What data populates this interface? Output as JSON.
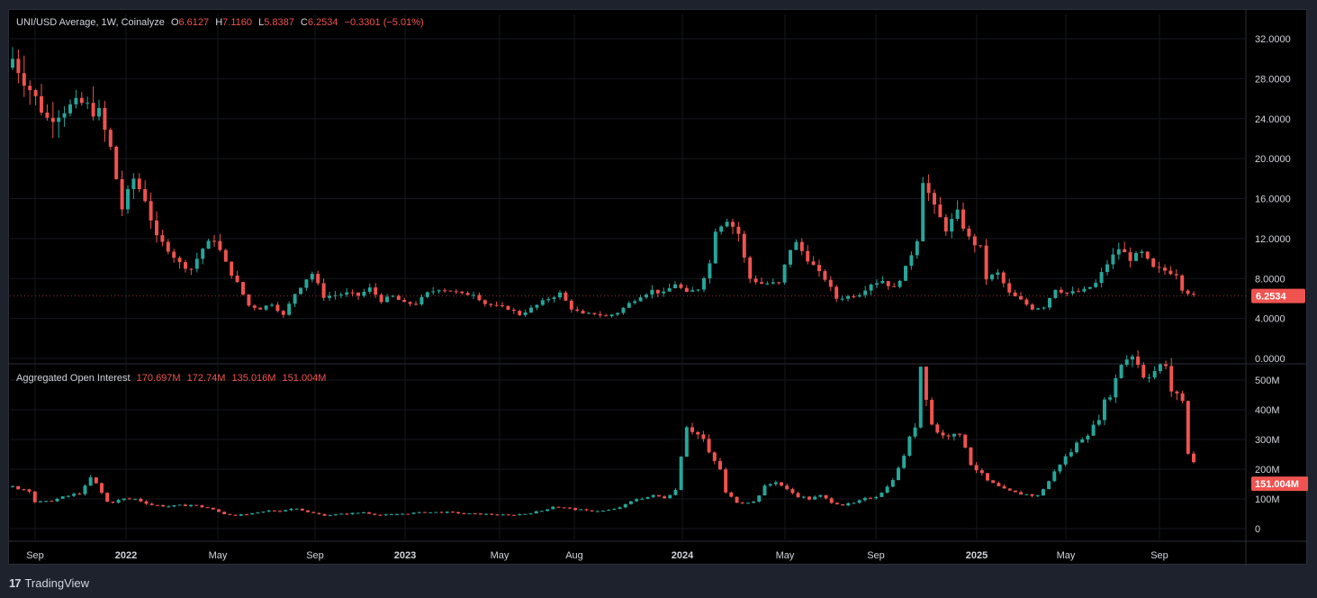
{
  "price_legend": {
    "symbol": "UNI/USD Average, 1W, Coinalyze",
    "open_label": "O",
    "open": "6.6127",
    "high_label": "H",
    "high": "7.1160",
    "low_label": "L",
    "low": "5.8387",
    "close_label": "C",
    "close": "6.2534",
    "change": "−0.3301 (−5.01%)"
  },
  "oi_legend": {
    "title": "Aggregated Open Interest",
    "v1": "170.697M",
    "v2": "172.74M",
    "v3": "135.016M",
    "v4": "151.004M"
  },
  "footer": {
    "brand": "TradingView",
    "logo_text": "17"
  },
  "colors": {
    "up": "#26a69a",
    "down": "#ef5350",
    "bg": "#000000",
    "grid": "#1c1f26",
    "text": "#d1d4dc"
  },
  "chart_data": [
    {
      "type": "candlestick",
      "title": "UNI/USD Average, 1W, Coinalyze",
      "y_ticks": [
        "32.0000",
        "28.0000",
        "24.0000",
        "20.0000",
        "16.0000",
        "12.0000",
        "8.0000",
        "4.0000",
        "0.0000"
      ],
      "ylim": [
        0,
        34.5
      ],
      "last_value_label": "6.2534",
      "x_ticks": [
        {
          "label": "Sep",
          "bold": false
        },
        {
          "label": "2022",
          "bold": true
        },
        {
          "label": "May",
          "bold": false
        },
        {
          "label": "Sep",
          "bold": false
        },
        {
          "label": "2023",
          "bold": true
        },
        {
          "label": "May",
          "bold": false
        },
        {
          "label": "Aug",
          "bold": false
        },
        {
          "label": "2024",
          "bold": true
        },
        {
          "label": "May",
          "bold": false
        },
        {
          "label": "Sep",
          "bold": false
        },
        {
          "label": "2025",
          "bold": true
        },
        {
          "label": "May",
          "bold": false
        },
        {
          "label": "Sep",
          "bold": false
        }
      ],
      "close_path": [
        [
          0,
          30
        ],
        [
          3,
          27
        ],
        [
          6,
          24
        ],
        [
          9,
          25
        ],
        [
          12,
          25.5
        ],
        [
          15,
          24.5
        ],
        [
          17,
          21
        ],
        [
          19,
          15
        ],
        [
          21,
          18
        ],
        [
          23,
          16
        ],
        [
          25,
          12
        ],
        [
          27,
          11
        ],
        [
          29,
          9.5
        ],
        [
          31,
          9
        ],
        [
          33,
          11
        ],
        [
          35,
          12
        ],
        [
          37,
          9.5
        ],
        [
          39,
          7.5
        ],
        [
          41,
          5.3
        ],
        [
          43,
          5
        ],
        [
          45,
          5.5
        ],
        [
          47,
          4.3
        ],
        [
          49,
          6.5
        ],
        [
          51,
          8
        ],
        [
          52,
          8.5
        ],
        [
          54,
          6.2
        ],
        [
          58,
          6.5
        ],
        [
          60,
          6.3
        ],
        [
          62,
          7
        ],
        [
          64,
          5.8
        ],
        [
          66,
          6.2
        ],
        [
          68,
          5.5
        ],
        [
          70,
          5.5
        ],
        [
          72,
          6.5
        ],
        [
          74,
          7
        ],
        [
          76,
          6.8
        ],
        [
          78,
          6.4
        ],
        [
          80,
          6.5
        ],
        [
          82,
          5.5
        ],
        [
          84,
          5.2
        ],
        [
          86,
          5
        ],
        [
          88,
          4.4
        ],
        [
          90,
          5
        ],
        [
          93,
          6
        ],
        [
          95,
          6.5
        ],
        [
          97,
          5
        ],
        [
          99,
          4.4
        ],
        [
          101,
          4.5
        ],
        [
          103,
          4.2
        ],
        [
          105,
          4.6
        ],
        [
          107,
          5.5
        ],
        [
          109,
          6.3
        ],
        [
          111,
          6.8
        ],
        [
          113,
          6.5
        ],
        [
          115,
          7.5
        ],
        [
          117,
          6.5
        ],
        [
          119,
          7
        ],
        [
          121,
          9.5
        ],
        [
          122,
          13
        ],
        [
          124,
          14
        ],
        [
          126,
          12.5
        ],
        [
          127,
          10
        ],
        [
          128,
          8
        ],
        [
          130,
          7.5
        ],
        [
          133,
          7.5
        ],
        [
          135,
          11
        ],
        [
          136,
          11.5
        ],
        [
          138,
          10
        ],
        [
          140,
          8.5
        ],
        [
          141,
          8
        ],
        [
          143,
          6
        ],
        [
          145,
          6.2
        ],
        [
          147,
          6.5
        ],
        [
          149,
          7.5
        ],
        [
          151,
          7.8
        ],
        [
          153,
          7
        ],
        [
          155,
          9
        ],
        [
          157,
          12
        ],
        [
          158,
          18
        ],
        [
          160,
          15
        ],
        [
          162,
          13
        ],
        [
          164,
          14.5
        ],
        [
          166,
          12
        ],
        [
          168,
          11
        ],
        [
          169,
          8
        ],
        [
          171,
          8.5
        ],
        [
          173,
          6.5
        ],
        [
          175,
          5.8
        ],
        [
          177,
          5
        ],
        [
          179,
          5.2
        ],
        [
          181,
          7
        ],
        [
          183,
          6.5
        ],
        [
          186,
          6.8
        ],
        [
          188,
          7.5
        ],
        [
          190,
          9.5
        ],
        [
          192,
          11
        ],
        [
          194,
          10
        ],
        [
          196,
          10.5
        ],
        [
          198,
          9
        ],
        [
          200,
          8.8
        ],
        [
          202,
          8.5
        ],
        [
          203,
          7
        ],
        [
          205,
          6.25
        ]
      ],
      "oi_path": [
        [
          0,
          1.4
        ],
        [
          3,
          1.3
        ],
        [
          4,
          0.9
        ],
        [
          6,
          0.9
        ],
        [
          8,
          1.0
        ],
        [
          10,
          1.1
        ],
        [
          12,
          1.2
        ],
        [
          13,
          1.4
        ],
        [
          14,
          1.7
        ],
        [
          15,
          1.5
        ],
        [
          16,
          1.2
        ],
        [
          17,
          0.9
        ],
        [
          18,
          0.9
        ],
        [
          20,
          1.0
        ],
        [
          22,
          1.0
        ],
        [
          25,
          0.8
        ],
        [
          28,
          0.75
        ],
        [
          32,
          0.8
        ],
        [
          35,
          0.7
        ],
        [
          38,
          0.5
        ],
        [
          40,
          0.45
        ],
        [
          43,
          0.5
        ],
        [
          46,
          0.6
        ],
        [
          48,
          0.6
        ],
        [
          51,
          0.7
        ],
        [
          53,
          0.55
        ],
        [
          56,
          0.45
        ],
        [
          60,
          0.5
        ],
        [
          63,
          0.55
        ],
        [
          66,
          0.45
        ],
        [
          70,
          0.5
        ],
        [
          74,
          0.55
        ],
        [
          78,
          0.55
        ],
        [
          82,
          0.5
        ],
        [
          86,
          0.48
        ],
        [
          89,
          0.45
        ],
        [
          92,
          0.5
        ],
        [
          95,
          0.6
        ],
        [
          97,
          0.75
        ],
        [
          99,
          0.7
        ],
        [
          103,
          0.6
        ],
        [
          106,
          0.6
        ],
        [
          108,
          0.65
        ],
        [
          110,
          0.8
        ],
        [
          112,
          1.0
        ],
        [
          115,
          1.1
        ],
        [
          117,
          1.05
        ],
        [
          119,
          1.3
        ],
        [
          120,
          2.5
        ],
        [
          121,
          3.5
        ],
        [
          124,
          3.0
        ],
        [
          125,
          2.5
        ],
        [
          127,
          2.0
        ],
        [
          128,
          1.2
        ],
        [
          130,
          0.9
        ],
        [
          133,
          0.9
        ],
        [
          135,
          1.4
        ],
        [
          137,
          1.6
        ],
        [
          139,
          1.3
        ],
        [
          141,
          1.1
        ],
        [
          143,
          1.0
        ],
        [
          145,
          1.1
        ],
        [
          147,
          0.9
        ],
        [
          149,
          0.8
        ],
        [
          151,
          0.85
        ],
        [
          153,
          1.0
        ],
        [
          155,
          1.1
        ],
        [
          157,
          1.4
        ],
        [
          159,
          2.0
        ],
        [
          160,
          2.5
        ],
        [
          162,
          3.5
        ],
        [
          163,
          5.5
        ],
        [
          165,
          3.5
        ],
        [
          167,
          3.1
        ],
        [
          169,
          3.3
        ],
        [
          171,
          2.8
        ],
        [
          172,
          2.2
        ],
        [
          173,
          2.0
        ],
        [
          175,
          1.6
        ],
        [
          178,
          1.3
        ],
        [
          180,
          1.2
        ],
        [
          182,
          1.15
        ],
        [
          184,
          1.1
        ],
        [
          186,
          1.6
        ],
        [
          188,
          2.2
        ],
        [
          190,
          2.6
        ],
        [
          192,
          3.1
        ],
        [
          194,
          3.4
        ],
        [
          196,
          4.2
        ],
        [
          198,
          5.0
        ],
        [
          199,
          5.6
        ],
        [
          201,
          5.9
        ],
        [
          203,
          5.2
        ],
        [
          205,
          5.3
        ],
        [
          207,
          5.5
        ],
        [
          208,
          4.5
        ],
        [
          209,
          4.6
        ],
        [
          210,
          4.3
        ],
        [
          211,
          2.5
        ],
        [
          212,
          2.3
        ]
      ]
    },
    {
      "type": "candlestick",
      "title": "Aggregated Open Interest",
      "y_ticks": [
        "500M",
        "400M",
        "300M",
        "200M",
        "100M",
        "0"
      ],
      "ylim": [
        0,
        500
      ],
      "last_value_label": "151.004M"
    }
  ]
}
